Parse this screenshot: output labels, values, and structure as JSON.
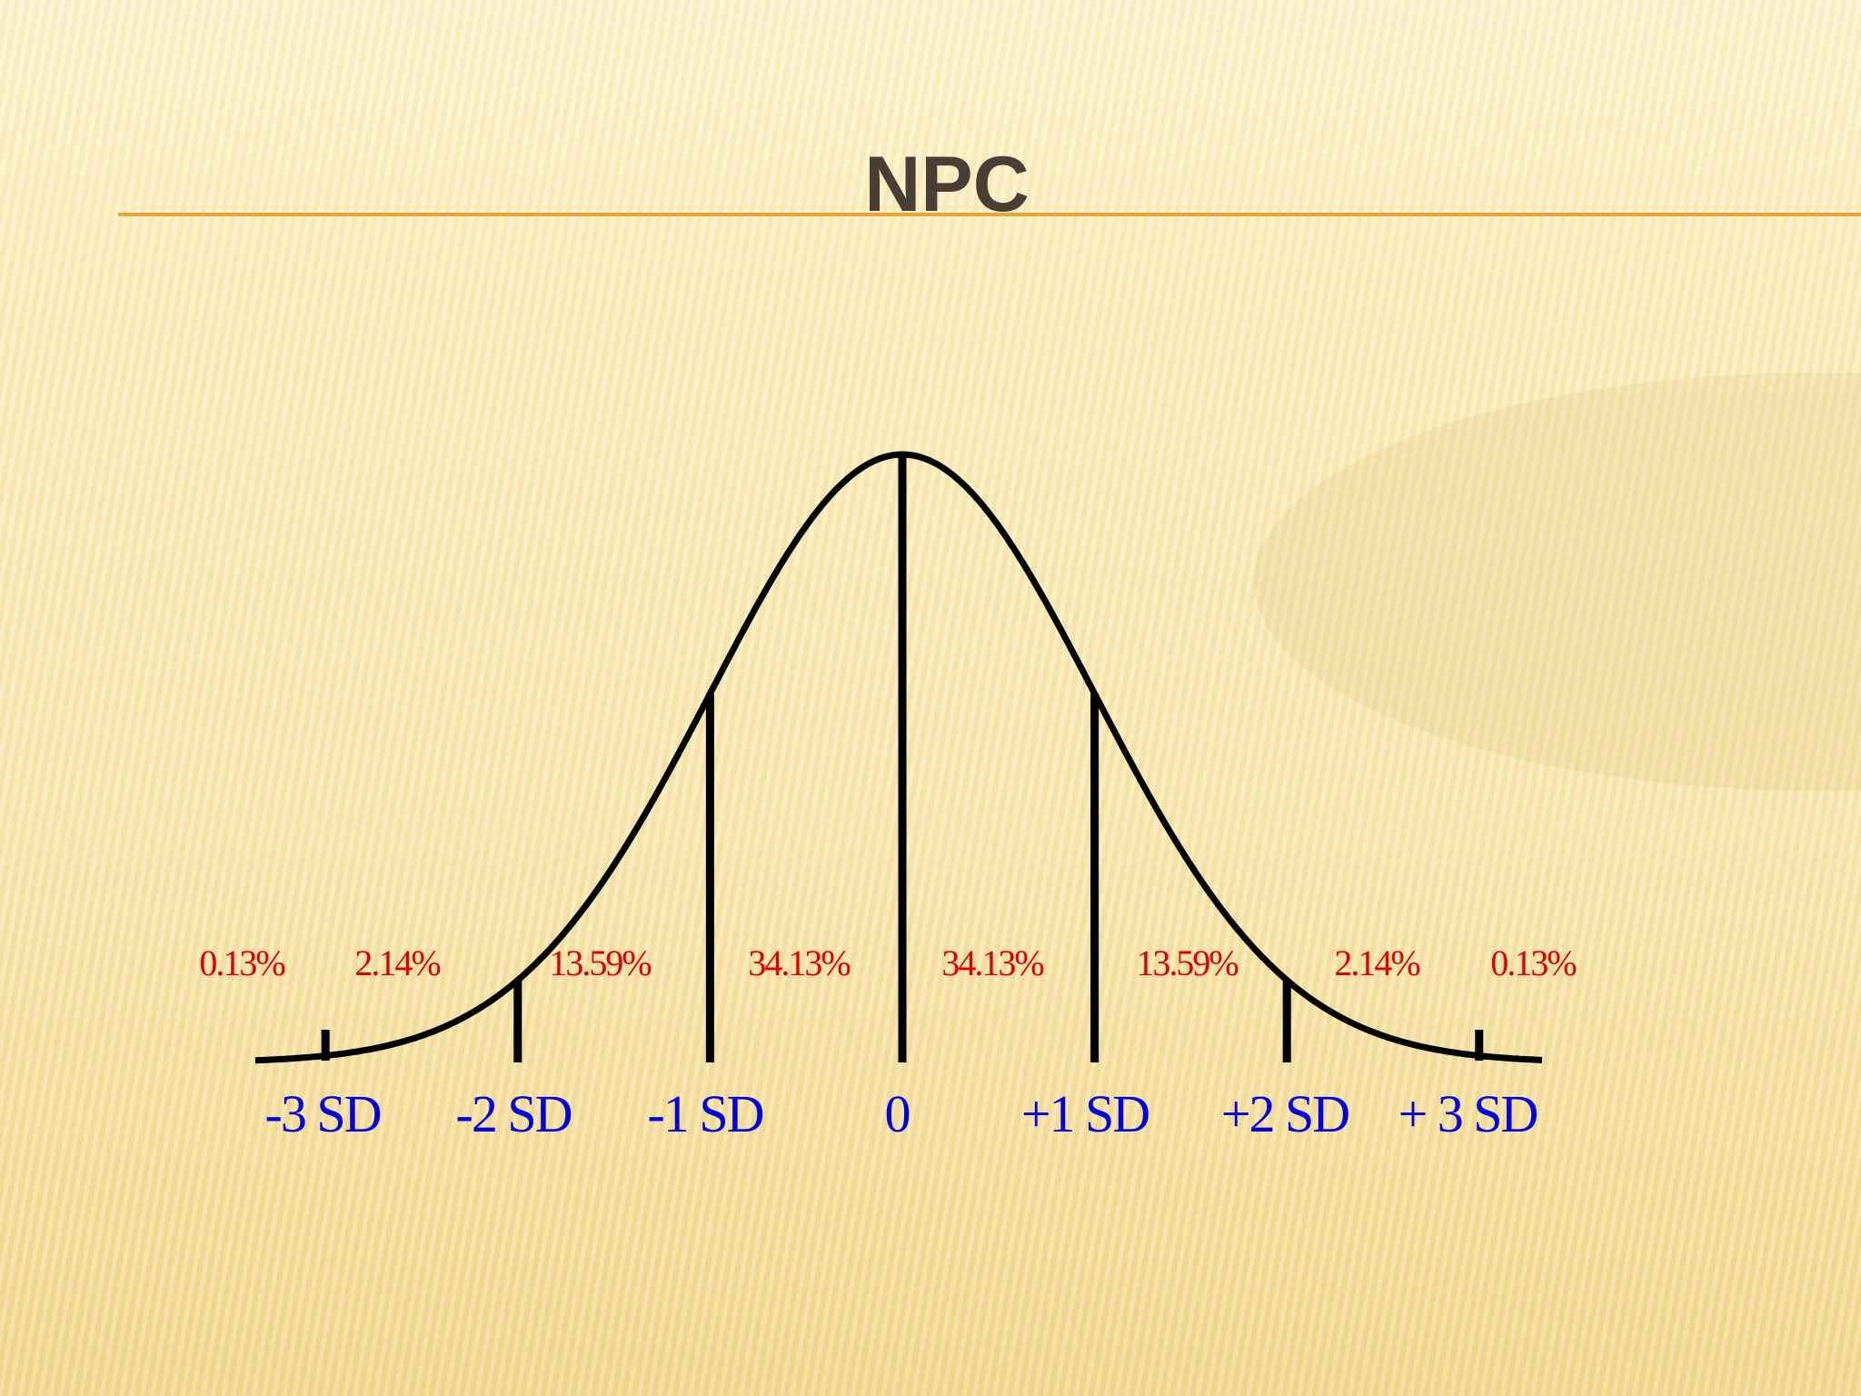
{
  "title": "NPC",
  "diagram": {
    "region_percentages": [
      "0.13%",
      "2.14%",
      "13.59%",
      "34.13%",
      "34.13%",
      "13.59%",
      "2.14%",
      "0.13%"
    ],
    "sd_labels": [
      "-3 SD",
      "-2 SD",
      "-1 SD",
      "0",
      "+1 SD",
      "+2 SD",
      "+ 3 SD"
    ]
  }
}
